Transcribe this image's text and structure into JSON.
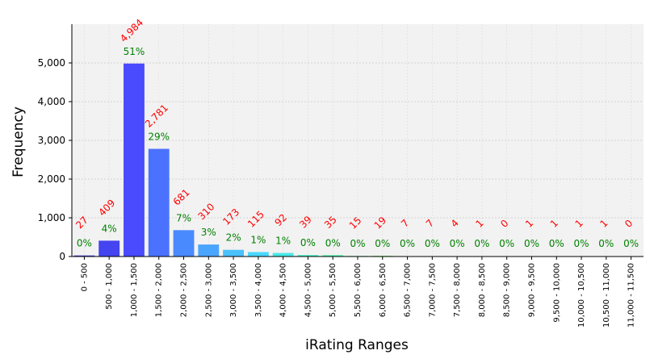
{
  "chart_data": {
    "type": "bar",
    "title": "",
    "xlabel": "iRating Ranges",
    "ylabel": "Frequency",
    "ylim": [
      0,
      6000
    ],
    "yticks": [
      0,
      1000,
      2000,
      3000,
      4000,
      5000
    ],
    "ytick_labels": [
      "0",
      "1,000",
      "2,000",
      "3,000",
      "4,000",
      "5,000"
    ],
    "grid": true,
    "categories": [
      "0 - 500",
      "500 - 1,000",
      "1,000 - 1,500",
      "1,500 - 2,000",
      "2,000 - 2,500",
      "2,500 - 3,000",
      "3,000 - 3,500",
      "3,500 - 4,000",
      "4,000 - 4,500",
      "4,500 - 5,000",
      "5,000 - 5,500",
      "5,500 - 6,000",
      "6,000 - 6,500",
      "6,500 - 7,000",
      "7,000 - 7,500",
      "7,500 - 8,000",
      "8,000 - 8,500",
      "8,500 - 9,000",
      "9,000 - 9,500",
      "9,500 - 10,000",
      "10,000 - 10,500",
      "10,500 - 11,000",
      "11,000 - 11,500"
    ],
    "values": [
      27,
      409,
      4984,
      2781,
      681,
      310,
      173,
      115,
      92,
      39,
      35,
      15,
      19,
      7,
      7,
      4,
      1,
      0,
      1,
      1,
      1,
      1,
      0
    ],
    "count_labels": [
      "27",
      "409",
      "4,984",
      "2,781",
      "681",
      "310",
      "173",
      "115",
      "92",
      "39",
      "35",
      "15",
      "19",
      "7",
      "7",
      "4",
      "1",
      "0",
      "1",
      "1",
      "1",
      "1",
      "0"
    ],
    "percent_labels": [
      "0%",
      "4%",
      "51%",
      "29%",
      "7%",
      "3%",
      "2%",
      "1%",
      "1%",
      "0%",
      "0%",
      "0%",
      "0%",
      "0%",
      "0%",
      "0%",
      "0%",
      "0%",
      "0%",
      "0%",
      "0%",
      "0%",
      "0%"
    ],
    "colors": [
      "#3b3bd6",
      "#4444f0",
      "#4a4aff",
      "#4a72ff",
      "#4a8aff",
      "#4aa5ff",
      "#4ac0ff",
      "#4ad8ff",
      "#4ae8e8",
      "#4af0c8",
      "#4af0a8",
      "#5af088",
      "#7af070",
      "#9af060",
      "#baf050",
      "#d8f048",
      "#eef048",
      "#f8e040",
      "#f8c838",
      "#f8b030",
      "#f89830",
      "#f88030",
      "#f86830"
    ]
  }
}
